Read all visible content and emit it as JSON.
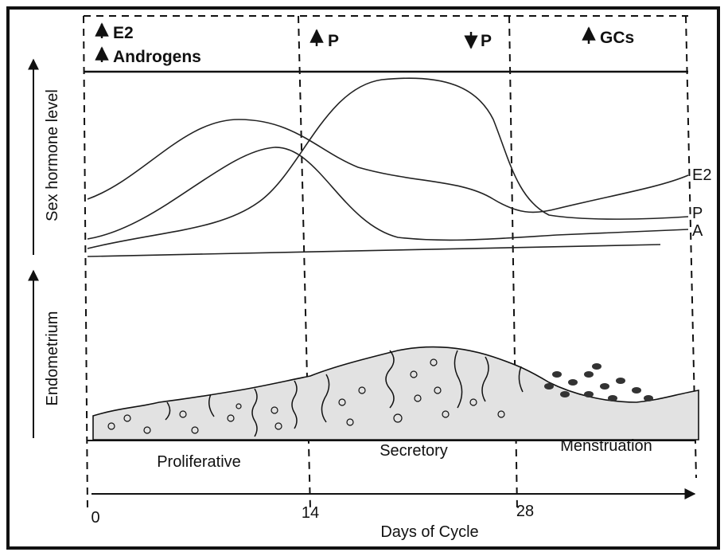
{
  "top_panel": {
    "annotations": [
      "E2",
      "Androgens",
      "P",
      "P",
      "GCs"
    ]
  },
  "axis_labels": {
    "upper": "Sex hormone level",
    "lower": "Endometrium"
  },
  "curve_labels": [
    "E2",
    "P",
    "A"
  ],
  "phases": [
    "Proliferative",
    "Secretory",
    "Menstruation"
  ],
  "x_ticks": [
    "0",
    "14",
    "28"
  ],
  "x_label": "Days of Cycle"
}
